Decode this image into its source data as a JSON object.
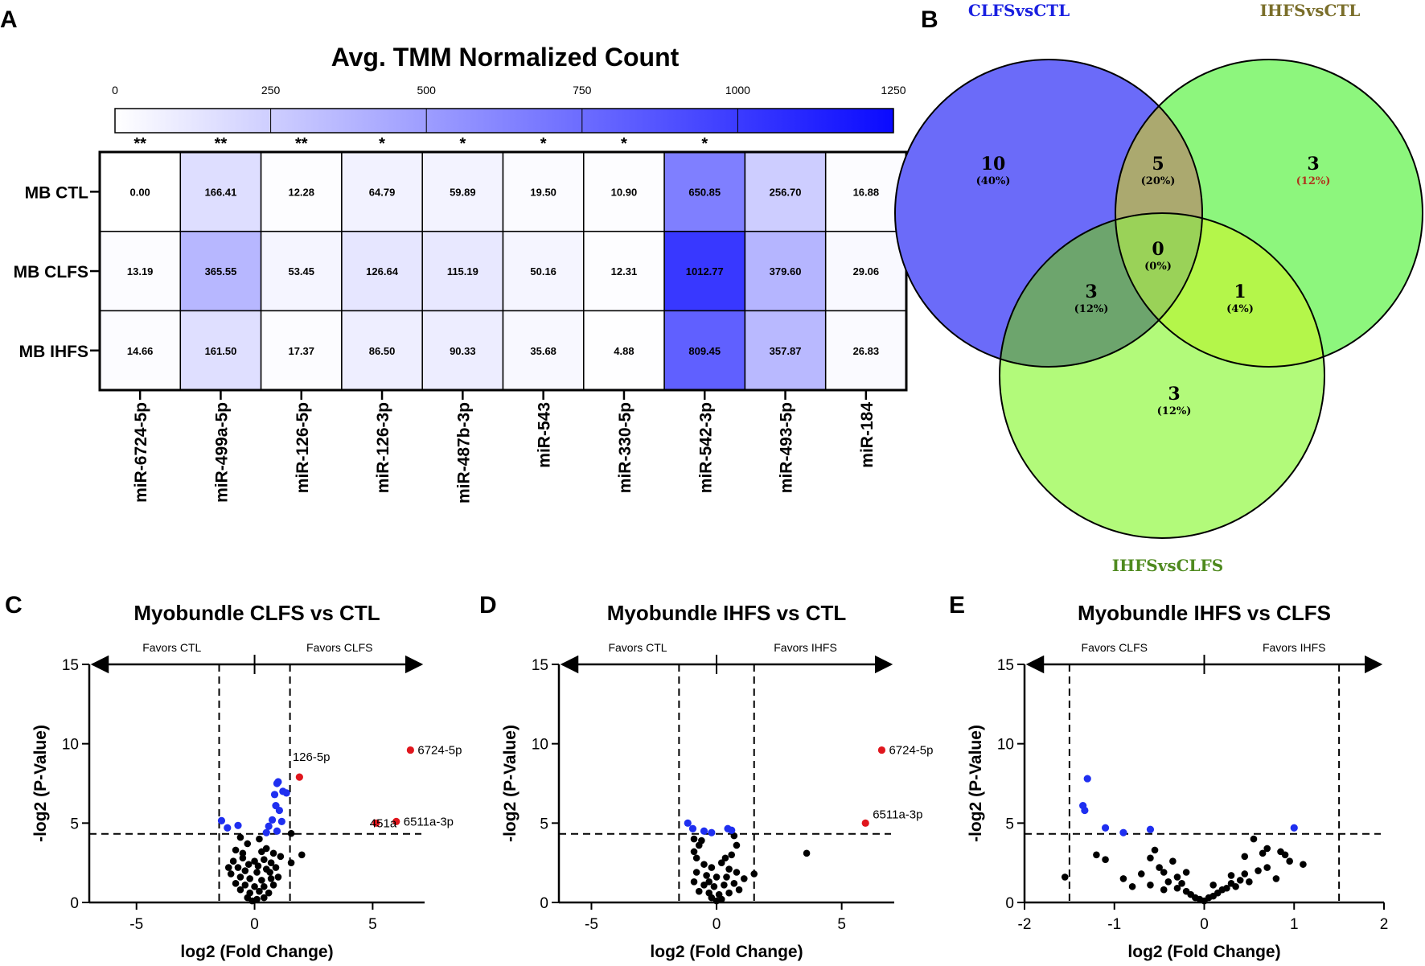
{
  "panels": {
    "A": "A",
    "B": "B",
    "C": "C",
    "D": "D",
    "E": "E"
  },
  "colors": {
    "heat_low": "#ffffff",
    "heat_high": "#0a0aff",
    "up": "#e0161d",
    "down": "#1f2ff0",
    "ns": "#000000",
    "venn_clfs": "#6b6bf9",
    "venn_ihfs_ctl": "#8df67d",
    "venn_ihfs_clfs": "#b2fa7a",
    "title_clfs": "#1a20e0",
    "title_ihfs_ctl": "#7a6e2a",
    "title_ihfs_clfs": "#4f8a1f"
  },
  "heatmap": {
    "title": "Avg. TMM Normalized Count",
    "colorbar_ticks": [
      "0",
      "250",
      "500",
      "750",
      "1000",
      "1250"
    ],
    "colorbar_max": 1250,
    "rows": [
      "MB CTL",
      "MB CLFS",
      "MB IHFS"
    ],
    "columns": [
      "miR-6724-5p",
      "miR-499a-5p",
      "miR-126-5p",
      "miR-126-3p",
      "miR-487b-3p",
      "miR-543",
      "miR-330-5p",
      "miR-542-3p",
      "miR-493-5p",
      "miR-184"
    ],
    "significance": [
      "**",
      "**",
      "**",
      "*",
      "*",
      "*",
      "*",
      "*",
      "",
      ""
    ],
    "values": [
      [
        0.0,
        166.41,
        12.28,
        64.79,
        59.89,
        19.5,
        10.9,
        650.85,
        256.7,
        16.88
      ],
      [
        13.19,
        365.55,
        53.45,
        126.64,
        115.19,
        50.16,
        12.31,
        1012.77,
        379.6,
        29.06
      ],
      [
        14.66,
        161.5,
        17.37,
        86.5,
        90.33,
        35.68,
        4.88,
        809.45,
        357.87,
        26.83
      ]
    ],
    "value_text": [
      [
        "0.00",
        "166.41",
        "12.28",
        "64.79",
        "59.89",
        "19.50",
        "10.90",
        "650.85",
        "256.70",
        "16.88"
      ],
      [
        "13.19",
        "365.55",
        "53.45",
        "126.64",
        "115.19",
        "50.16",
        "12.31",
        "1012.77",
        "379.60",
        "29.06"
      ],
      [
        "14.66",
        "161.50",
        "17.37",
        "86.50",
        "90.33",
        "35.68",
        "4.88",
        "809.45",
        "357.87",
        "26.83"
      ]
    ]
  },
  "venn": {
    "sets": [
      "CLFSvsCTL",
      "IHFSvsCTL",
      "IHFSvsCLFS"
    ],
    "regions": {
      "clfs_only": {
        "n": "10",
        "pct": "(40%)"
      },
      "clfs_ihfs_ctl": {
        "n": "5",
        "pct": "(20%)"
      },
      "ihfs_ctl_only": {
        "n": "3",
        "pct": "(12%)"
      },
      "all": {
        "n": "0",
        "pct": "(0%)"
      },
      "clfs_ihfs_clfs": {
        "n": "3",
        "pct": "(12%)"
      },
      "ihfs_ctl_ihfs_clfs": {
        "n": "1",
        "pct": "(4%)"
      },
      "ihfs_clfs_only": {
        "n": "3",
        "pct": "(12%)"
      }
    }
  },
  "chart_data": [
    {
      "type": "heatmap",
      "title": "Avg. TMM Normalized Count",
      "rows": [
        "MB CTL",
        "MB CLFS",
        "MB IHFS"
      ],
      "columns": [
        "miR-6724-5p",
        "miR-499a-5p",
        "miR-126-5p",
        "miR-126-3p",
        "miR-487b-3p",
        "miR-543",
        "miR-330-5p",
        "miR-542-3p",
        "miR-493-5p",
        "miR-184"
      ],
      "values": [
        [
          0.0,
          166.41,
          12.28,
          64.79,
          59.89,
          19.5,
          10.9,
          650.85,
          256.7,
          16.88
        ],
        [
          13.19,
          365.55,
          53.45,
          126.64,
          115.19,
          50.16,
          12.31,
          1012.77,
          379.6,
          29.06
        ],
        [
          14.66,
          161.5,
          17.37,
          86.5,
          90.33,
          35.68,
          4.88,
          809.45,
          357.87,
          26.83
        ]
      ],
      "color_range": [
        0,
        1250
      ]
    },
    {
      "type": "scatter",
      "title": "Myobundle CLFS vs CTL",
      "xlabel": "log2 (Fold Change)",
      "ylabel": "-log2 (P-Value)",
      "xlim": [
        -7,
        7.2
      ],
      "ylim": [
        0,
        15
      ],
      "xticks": [
        -5,
        0,
        5
      ],
      "yticks": [
        0,
        5,
        10,
        15
      ],
      "fc_cutoff": [
        -1.5,
        1.5
      ],
      "p_cutoff": 4.32,
      "favors_left": "Favors CTL",
      "favors_right": "Favors CLFS",
      "labels": [
        {
          "text": "126-5p",
          "x": 1.95,
          "y": 7.9
        },
        {
          "text": "6724-5p",
          "x": 6.6,
          "y": 9.6
        },
        {
          "text": "451a",
          "x": 5.15,
          "y": 5.0
        },
        {
          "text": "6511a-3p",
          "x": 6.0,
          "y": 5.1
        }
      ],
      "up": [
        [
          6.6,
          9.6
        ],
        [
          1.9,
          7.9
        ],
        [
          5.15,
          5.0
        ],
        [
          6.0,
          5.1
        ]
      ],
      "down": [
        [
          -1.4,
          5.15
        ],
        [
          -1.15,
          4.7
        ],
        [
          -0.7,
          4.85
        ],
        [
          0.6,
          4.8
        ],
        [
          0.75,
          5.2
        ],
        [
          0.9,
          6.1
        ],
        [
          0.85,
          6.8
        ],
        [
          1.0,
          7.6
        ],
        [
          0.95,
          7.5
        ],
        [
          1.2,
          7.0
        ],
        [
          1.35,
          6.9
        ],
        [
          1.05,
          5.8
        ],
        [
          1.15,
          5.1
        ],
        [
          0.5,
          4.4
        ],
        [
          0.95,
          4.5
        ]
      ],
      "ns": [
        [
          1.55,
          4.35
        ],
        [
          1.55,
          2.5
        ],
        [
          2.0,
          3.0
        ],
        [
          -0.6,
          4.1
        ],
        [
          -0.3,
          3.7
        ],
        [
          0.2,
          4.0
        ],
        [
          0.5,
          3.4
        ],
        [
          0.8,
          3.1
        ],
        [
          1.1,
          2.9
        ],
        [
          -0.8,
          3.3
        ],
        [
          -0.5,
          2.8
        ],
        [
          0.0,
          2.6
        ],
        [
          0.4,
          2.7
        ],
        [
          0.7,
          2.5
        ],
        [
          -0.9,
          2.6
        ],
        [
          -0.7,
          2.2
        ],
        [
          -0.4,
          2.0
        ],
        [
          0.1,
          1.9
        ],
        [
          0.5,
          2.1
        ],
        [
          0.9,
          2.2
        ],
        [
          -1.0,
          1.8
        ],
        [
          -0.6,
          1.6
        ],
        [
          -0.2,
          1.5
        ],
        [
          0.3,
          1.4
        ],
        [
          0.7,
          1.5
        ],
        [
          -0.8,
          1.2
        ],
        [
          -0.4,
          1.1
        ],
        [
          0.0,
          1.0
        ],
        [
          0.4,
          1.0
        ],
        [
          0.8,
          1.1
        ],
        [
          -0.6,
          0.8
        ],
        [
          -0.2,
          0.6
        ],
        [
          0.2,
          0.7
        ],
        [
          0.6,
          0.6
        ],
        [
          -0.3,
          0.3
        ],
        [
          0.1,
          0.2
        ],
        [
          0.4,
          0.3
        ],
        [
          -0.1,
          0.1
        ],
        [
          -0.5,
          3.1
        ],
        [
          0.3,
          3.2
        ],
        [
          1.0,
          1.6
        ],
        [
          -1.1,
          2.2
        ],
        [
          0.15,
          2.3
        ],
        [
          -0.25,
          2.4
        ],
        [
          0.65,
          1.9
        ]
      ]
    },
    {
      "type": "scatter",
      "title": "Myobundle IHFS vs CTL",
      "xlabel": "log2 (Fold Change)",
      "ylabel": "-log2 (P-Value)",
      "xlim": [
        -6.3,
        7.1
      ],
      "ylim": [
        0,
        15
      ],
      "xticks": [
        -5,
        0,
        5
      ],
      "yticks": [
        0,
        5,
        10,
        15
      ],
      "fc_cutoff": [
        -1.5,
        1.5
      ],
      "p_cutoff": 4.32,
      "favors_left": "Favors CTL",
      "favors_right": "Favors IHFS",
      "labels": [
        {
          "text": "6724-5p",
          "x": 6.6,
          "y": 9.6
        },
        {
          "text": "6511a-3p",
          "x": 5.95,
          "y": 5.0
        }
      ],
      "up": [
        [
          6.6,
          9.6
        ],
        [
          5.95,
          5.0
        ]
      ],
      "down": [
        [
          -1.15,
          5.0
        ],
        [
          -0.95,
          4.65
        ],
        [
          -0.5,
          4.5
        ],
        [
          0.45,
          4.65
        ],
        [
          0.6,
          4.55
        ],
        [
          -0.2,
          4.4
        ]
      ],
      "ns": [
        [
          3.6,
          3.1
        ],
        [
          1.5,
          1.8
        ],
        [
          1.1,
          1.5
        ],
        [
          -0.9,
          4.0
        ],
        [
          -0.9,
          3.2
        ],
        [
          -0.8,
          2.8
        ],
        [
          -0.7,
          3.6
        ],
        [
          0.7,
          4.2
        ],
        [
          0.8,
          3.6
        ],
        [
          0.6,
          3.0
        ],
        [
          -0.5,
          2.4
        ],
        [
          -0.2,
          2.2
        ],
        [
          0.2,
          2.5
        ],
        [
          0.5,
          2.1
        ],
        [
          -0.8,
          1.9
        ],
        [
          -0.4,
          1.7
        ],
        [
          0.0,
          1.6
        ],
        [
          0.4,
          1.6
        ],
        [
          0.8,
          1.9
        ],
        [
          -0.9,
          1.3
        ],
        [
          -0.5,
          1.1
        ],
        [
          -0.1,
          1.0
        ],
        [
          0.3,
          1.1
        ],
        [
          0.7,
          1.2
        ],
        [
          -0.7,
          0.7
        ],
        [
          -0.3,
          0.6
        ],
        [
          0.1,
          0.5
        ],
        [
          0.5,
          0.6
        ],
        [
          -0.2,
          0.3
        ],
        [
          0.2,
          0.2
        ],
        [
          0.0,
          0.1
        ],
        [
          -0.6,
          3.9
        ],
        [
          0.35,
          2.8
        ],
        [
          -0.3,
          1.3
        ],
        [
          0.9,
          0.8
        ]
      ]
    },
    {
      "type": "scatter",
      "title": "Myobundle IHFS vs CLFS",
      "xlabel": "log2 (Fold Change)",
      "ylabel": "-log2 (P-Value)",
      "xlim": [
        -2,
        2
      ],
      "ylim": [
        0,
        15
      ],
      "xticks": [
        -2,
        -1,
        0,
        1,
        2
      ],
      "yticks": [
        0,
        5,
        10,
        15
      ],
      "fc_cutoff": [
        -1.5,
        1.5
      ],
      "p_cutoff": 4.32,
      "favors_left": "Favors CLFS",
      "favors_right": "Favors IHFS",
      "labels": [],
      "up": [],
      "down": [
        [
          -1.3,
          7.8
        ],
        [
          -1.35,
          6.1
        ],
        [
          -1.33,
          5.8
        ],
        [
          -1.1,
          4.7
        ],
        [
          -0.9,
          4.4
        ],
        [
          -0.6,
          4.6
        ],
        [
          1.0,
          4.7
        ]
      ],
      "ns": [
        [
          -1.55,
          1.6
        ],
        [
          -1.2,
          3.0
        ],
        [
          -1.1,
          2.7
        ],
        [
          -0.9,
          1.5
        ],
        [
          -0.6,
          2.8
        ],
        [
          -0.55,
          3.3
        ],
        [
          -0.5,
          2.2
        ],
        [
          -0.6,
          1.1
        ],
        [
          -0.45,
          1.9
        ],
        [
          -0.4,
          1.3
        ],
        [
          -0.35,
          2.6
        ],
        [
          -0.3,
          1.6
        ],
        [
          -0.3,
          0.9
        ],
        [
          -0.25,
          1.2
        ],
        [
          -0.2,
          0.7
        ],
        [
          -0.15,
          0.5
        ],
        [
          -0.1,
          0.3
        ],
        [
          -0.05,
          0.2
        ],
        [
          0.0,
          0.1
        ],
        [
          0.05,
          0.3
        ],
        [
          0.1,
          0.4
        ],
        [
          0.15,
          0.6
        ],
        [
          0.2,
          0.8
        ],
        [
          0.25,
          0.9
        ],
        [
          0.3,
          1.2
        ],
        [
          0.35,
          1.0
        ],
        [
          0.4,
          1.4
        ],
        [
          0.45,
          1.8
        ],
        [
          0.5,
          1.3
        ],
        [
          0.55,
          4.0
        ],
        [
          0.45,
          2.9
        ],
        [
          0.6,
          2.0
        ],
        [
          0.65,
          3.1
        ],
        [
          0.7,
          3.4
        ],
        [
          0.7,
          2.2
        ],
        [
          0.9,
          3.0
        ],
        [
          0.95,
          2.6
        ],
        [
          0.85,
          3.2
        ],
        [
          1.1,
          2.4
        ],
        [
          0.8,
          1.5
        ],
        [
          -0.7,
          1.8
        ],
        [
          -0.8,
          1.0
        ],
        [
          0.3,
          1.7
        ],
        [
          -0.2,
          1.9
        ],
        [
          -0.45,
          0.8
        ],
        [
          0.1,
          1.1
        ]
      ]
    }
  ]
}
